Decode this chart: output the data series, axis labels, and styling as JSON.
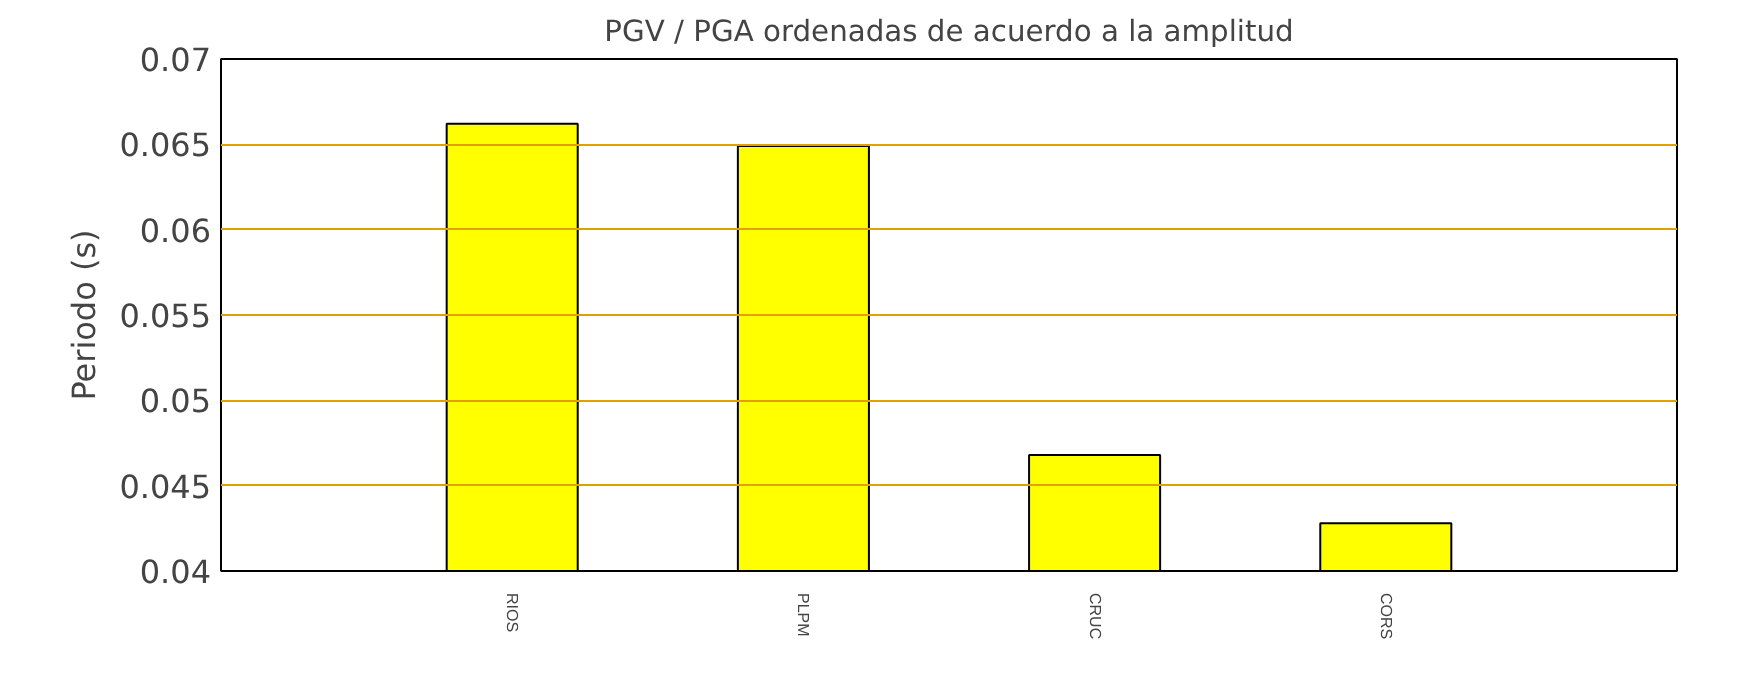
{
  "chart_data": {
    "type": "bar",
    "title": "PGV / PGA ordenadas de acuerdo a la amplitud",
    "ylabel": "Periodo (s)",
    "categories": [
      "RIOS",
      "PLPM",
      "CRUC",
      "CORS"
    ],
    "values": [
      0.0662,
      0.0649,
      0.0468,
      0.0428
    ],
    "color": "#ffff00",
    "ylim": [
      0.04,
      0.07
    ],
    "yticks": [
      0.04,
      0.045,
      0.05,
      0.055,
      0.06,
      0.065,
      0.07
    ],
    "grid": "y"
  }
}
